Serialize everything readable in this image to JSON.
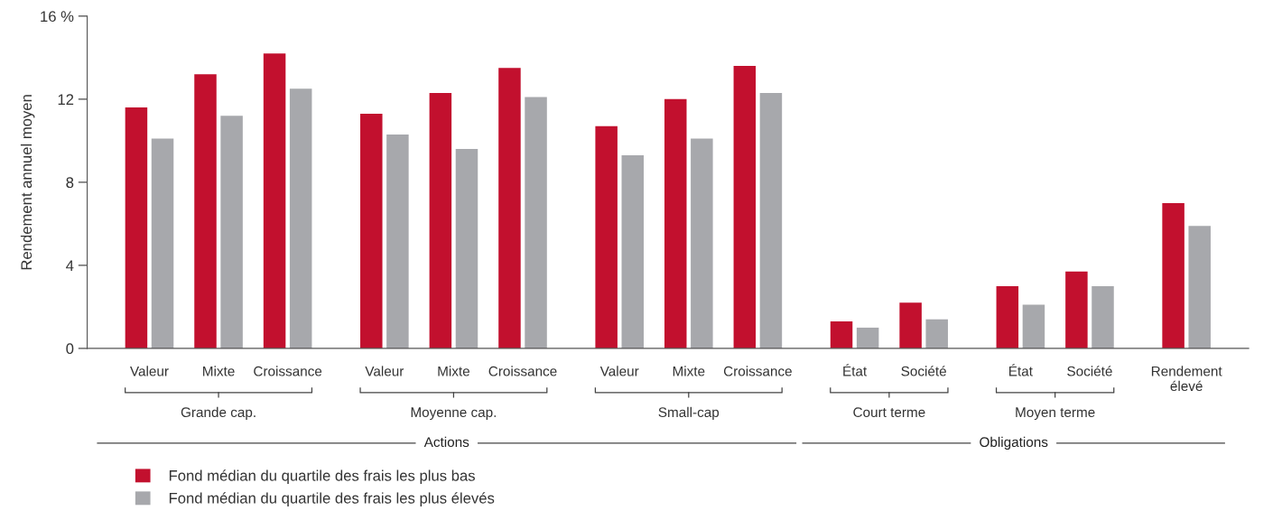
{
  "chart_data": {
    "type": "bar",
    "ylabel": "Rendement annuel moyen",
    "categories": [
      "Valeur",
      "Mixte",
      "Croissance",
      "Valeur",
      "Mixte",
      "Croissance",
      "Valeur",
      "Mixte",
      "Croissance",
      "État",
      "Société",
      "État",
      "Société",
      "Rendement élevé"
    ],
    "series": [
      {
        "name": "Fond médian du quartile des frais les plus bas",
        "color": "#c2102e",
        "values": [
          11.6,
          13.2,
          14.2,
          11.3,
          12.3,
          13.5,
          10.7,
          12.0,
          13.6,
          1.3,
          2.2,
          3.0,
          3.7,
          7.0
        ]
      },
      {
        "name": "Fond médian du quartile des frais les plus élevés",
        "color": "#a7a8ac",
        "values": [
          10.1,
          11.2,
          12.5,
          10.3,
          9.6,
          12.1,
          9.3,
          10.1,
          12.3,
          1.0,
          1.4,
          2.1,
          3.0,
          5.9
        ]
      }
    ],
    "ylim": [
      0,
      16
    ],
    "yticks": [
      0,
      4,
      8,
      12,
      {
        "value": 16,
        "label": "16 %"
      }
    ],
    "grid": false,
    "legend": "bottom left",
    "annotations": [
      "Grande cap.",
      "Moyenne cap.",
      "Small-cap",
      "Court terme",
      "Moyen terme",
      "Actions",
      "Obligations"
    ]
  }
}
